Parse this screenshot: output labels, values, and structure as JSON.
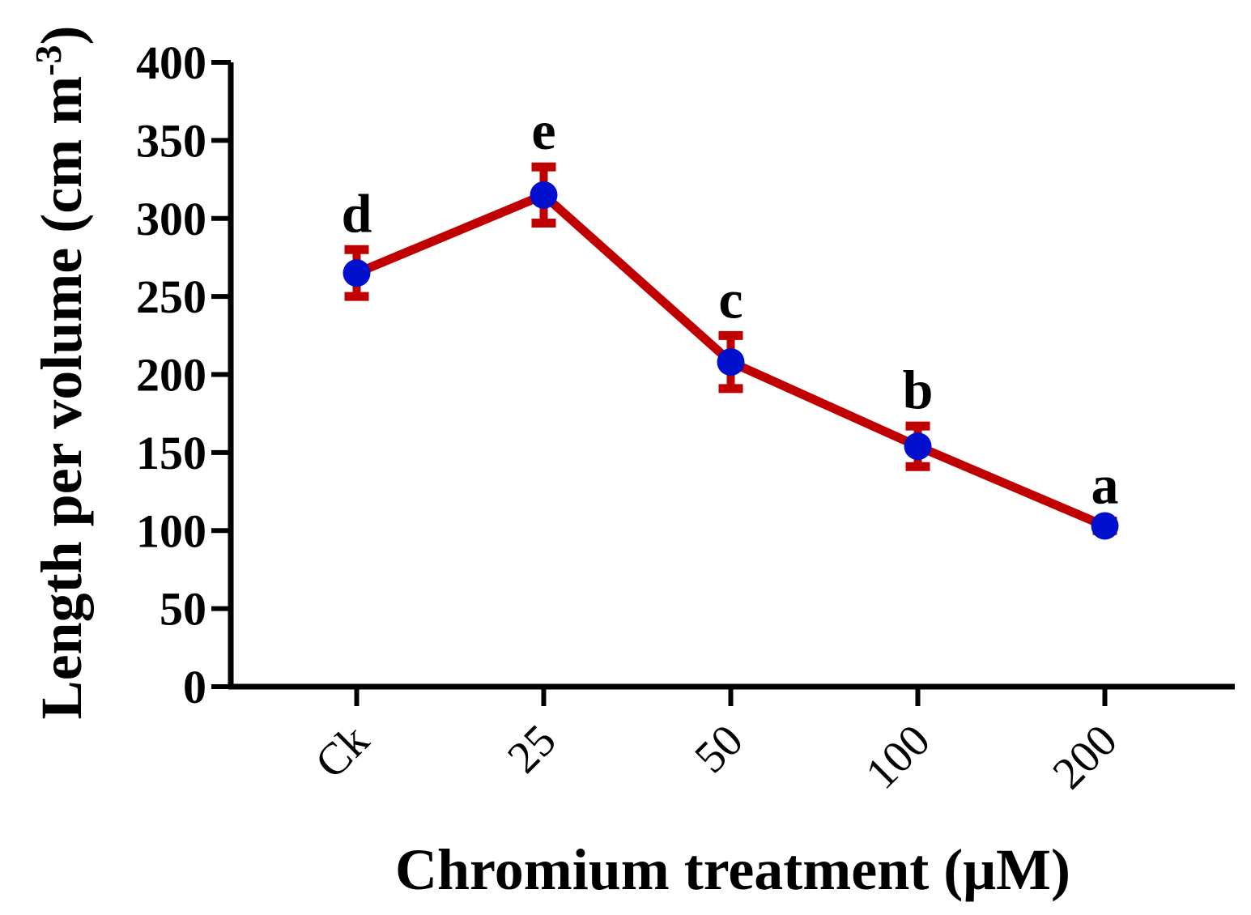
{
  "chart_data": {
    "type": "line",
    "categories": [
      "Ck",
      "25",
      "50",
      "100",
      "200"
    ],
    "series": [
      {
        "name": "Length per volume",
        "values": [
          265,
          315,
          208,
          154,
          103
        ],
        "errors": [
          15,
          18,
          17,
          13,
          3
        ],
        "significance": [
          "d",
          "e",
          "c",
          "b",
          "a"
        ]
      }
    ],
    "xlabel": "Chromium treatment (μM)",
    "ylabel_main": "Length per volume (cm m",
    "ylabel_sup": "-3",
    "ylabel_close": ")",
    "ylim": [
      0,
      400
    ],
    "yticks": [
      0,
      50,
      100,
      150,
      200,
      250,
      300,
      350,
      400
    ],
    "grid": false,
    "colors": {
      "line": "#c00000",
      "marker": "#0010cc",
      "error": "#c00000",
      "axis": "#000000"
    }
  }
}
